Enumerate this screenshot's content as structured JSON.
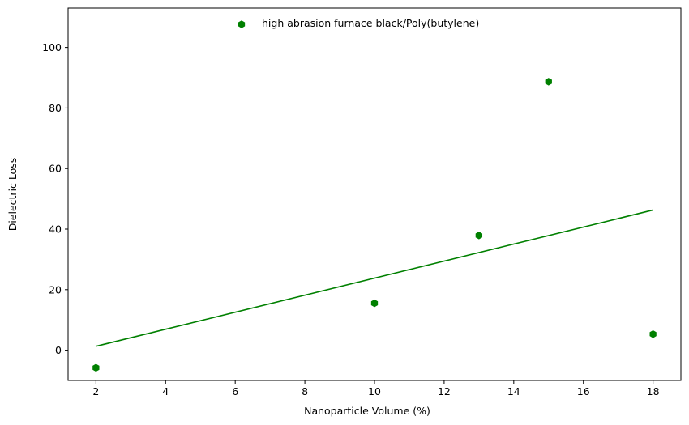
{
  "chart_data": {
    "type": "scatter",
    "title": "",
    "xlabel": "Nanoparticle Volume (%)",
    "ylabel": "Dielectric Loss",
    "xlim": [
      1.2,
      18.8
    ],
    "ylim": [
      -10,
      113
    ],
    "xticks": [
      2,
      4,
      6,
      8,
      10,
      12,
      14,
      16,
      18
    ],
    "yticks": [
      0,
      20,
      40,
      60,
      80,
      100
    ],
    "grid": false,
    "legend": {
      "placement": "upper-center"
    },
    "series": [
      {
        "name": "high abrasion furnace black/Poly(butylene)",
        "color": "#008000",
        "marker": "hexagon",
        "x": [
          2,
          10,
          13,
          15,
          18
        ],
        "y": [
          -5.8,
          15.5,
          37.9,
          88.7,
          5.3
        ]
      }
    ],
    "trendline": {
      "color": "#008000",
      "x": [
        2,
        18
      ],
      "y": [
        1.3,
        46.3
      ]
    }
  }
}
